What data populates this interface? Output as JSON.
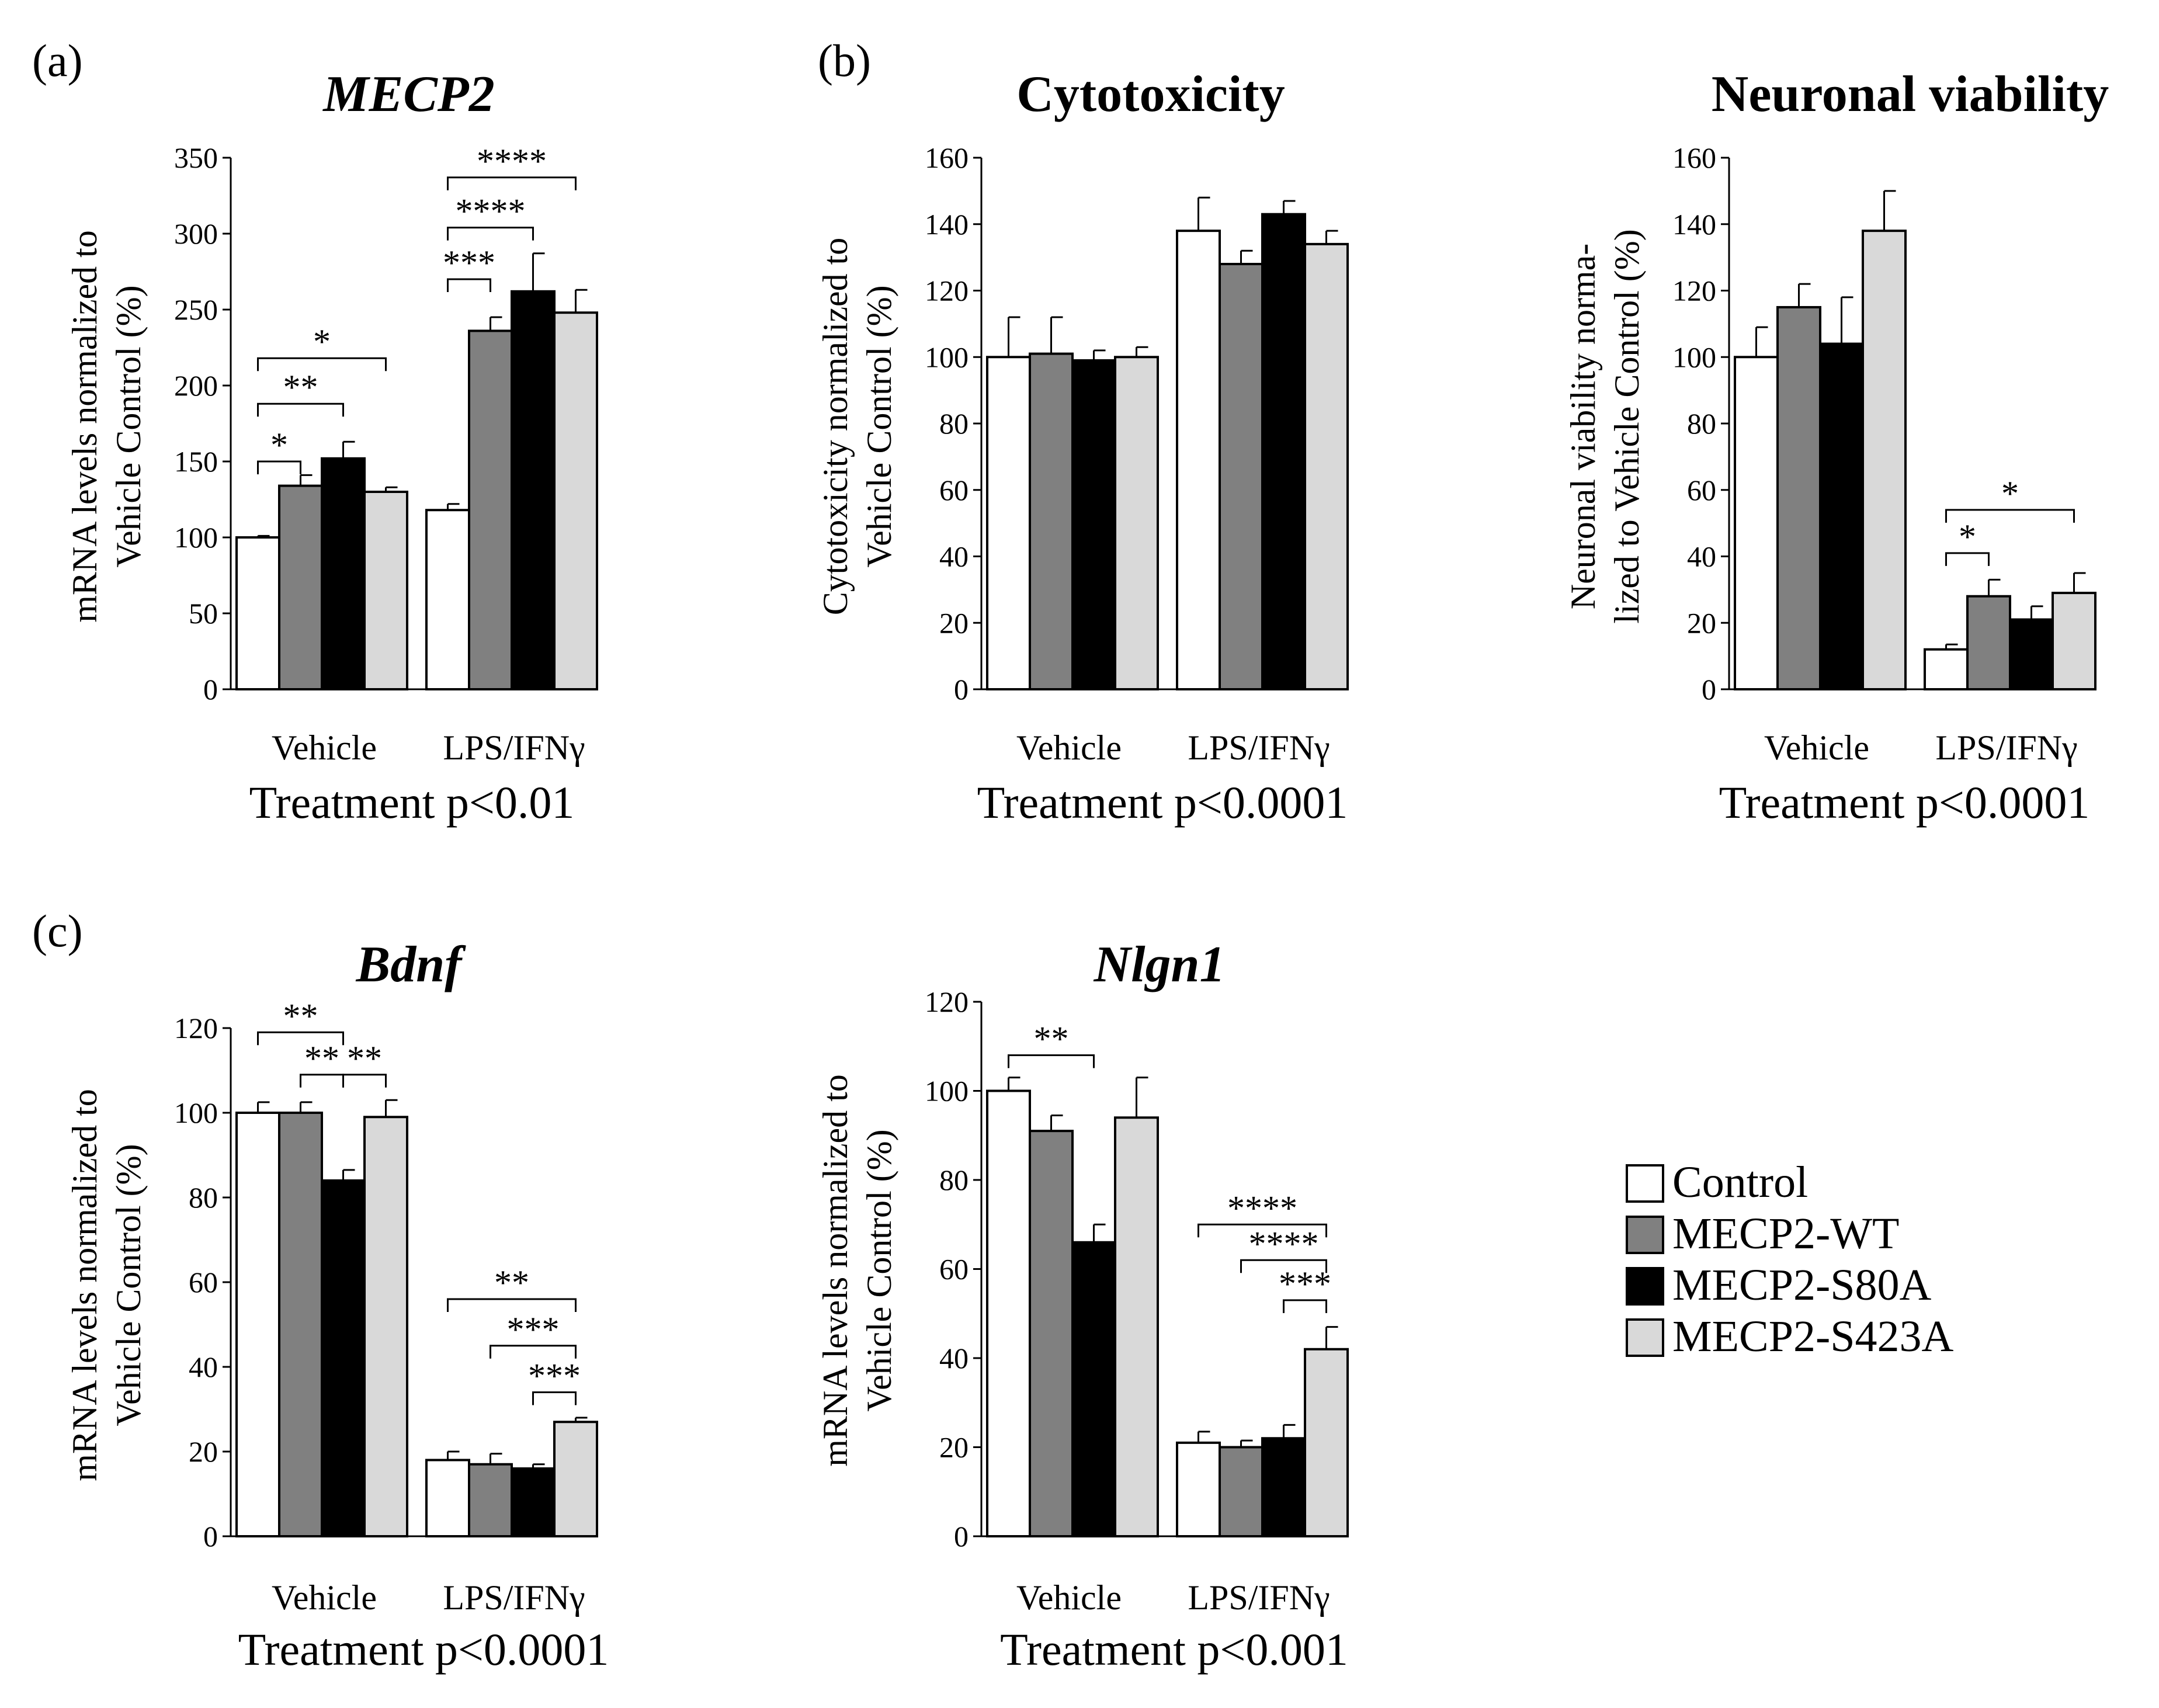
{
  "legend": [
    {
      "label": "Control",
      "color": "#ffffff"
    },
    {
      "label": "MECP2-WT",
      "color": "#808080"
    },
    {
      "label": "MECP2-S80A",
      "color": "#000000"
    },
    {
      "label": "MECP2-S423A",
      "color": "#d9d9d9"
    }
  ],
  "chart_data": [
    {
      "type": "bar",
      "panel": "(a)",
      "title": "MECP2",
      "title_italic": true,
      "ylabel": [
        "mRNA levels normalized to",
        "Vehicle Control (%)"
      ],
      "xlabel": "Treatment p<0.01",
      "categories": [
        "Vehicle",
        "LPS/IFNγ"
      ],
      "ylim": [
        0,
        350
      ],
      "yticks": [
        0,
        50,
        100,
        150,
        200,
        250,
        300,
        350
      ],
      "series": [
        {
          "name": "Control",
          "values": [
            100,
            118
          ],
          "errors": [
            1,
            4
          ]
        },
        {
          "name": "MECP2-WT",
          "values": [
            134,
            236
          ],
          "errors": [
            7,
            9
          ]
        },
        {
          "name": "MECP2-S80A",
          "values": [
            152,
            262
          ],
          "errors": [
            11,
            25
          ]
        },
        {
          "name": "MECP2-S423A",
          "values": [
            130,
            248
          ],
          "errors": [
            3,
            15
          ]
        }
      ],
      "significance": [
        {
          "group": 0,
          "from": 0,
          "to": 1,
          "label": "*",
          "y": 150
        },
        {
          "group": 0,
          "from": 0,
          "to": 2,
          "label": "**",
          "y": 188
        },
        {
          "group": 0,
          "from": 0,
          "to": 3,
          "label": "*",
          "y": 218
        },
        {
          "group": 1,
          "from": 0,
          "to": 1,
          "label": "***",
          "y": 270
        },
        {
          "group": 1,
          "from": 0,
          "to": 2,
          "label": "****",
          "y": 304
        },
        {
          "group": 1,
          "from": 0,
          "to": 3,
          "label": "****",
          "y": 337
        }
      ]
    },
    {
      "type": "bar",
      "panel": "(b)",
      "title": "Cytotoxicity",
      "title_italic": false,
      "ylabel": [
        "Cytotoxicity normalized to",
        "Vehicle Control (%)"
      ],
      "xlabel": "Treatment p<0.0001",
      "categories": [
        "Vehicle",
        "LPS/IFNγ"
      ],
      "ylim": [
        0,
        160
      ],
      "yticks": [
        0,
        20,
        40,
        60,
        80,
        100,
        120,
        140,
        160
      ],
      "series": [
        {
          "name": "Control",
          "values": [
            100,
            138
          ],
          "errors": [
            12,
            10
          ]
        },
        {
          "name": "MECP2-WT",
          "values": [
            101,
            128
          ],
          "errors": [
            11,
            4
          ]
        },
        {
          "name": "MECP2-S80A",
          "values": [
            99,
            143
          ],
          "errors": [
            3,
            4
          ]
        },
        {
          "name": "MECP2-S423A",
          "values": [
            100,
            134
          ],
          "errors": [
            3,
            4
          ]
        }
      ],
      "significance": []
    },
    {
      "type": "bar",
      "panel": "",
      "title": "Neuronal viability",
      "title_italic": false,
      "ylabel": [
        "Neuronal viability norma-",
        "lized to Vehicle Control (%)"
      ],
      "xlabel": "Treatment p<0.0001",
      "categories": [
        "Vehicle",
        "LPS/IFNγ"
      ],
      "ylim": [
        0,
        160
      ],
      "yticks": [
        0,
        20,
        40,
        60,
        80,
        100,
        120,
        140,
        160
      ],
      "series": [
        {
          "name": "Control",
          "values": [
            100,
            12
          ],
          "errors": [
            9,
            1.5
          ]
        },
        {
          "name": "MECP2-WT",
          "values": [
            115,
            28
          ],
          "errors": [
            7,
            5
          ]
        },
        {
          "name": "MECP2-S80A",
          "values": [
            104,
            21
          ],
          "errors": [
            14,
            4
          ]
        },
        {
          "name": "MECP2-S423A",
          "values": [
            138,
            29
          ],
          "errors": [
            12,
            6
          ]
        }
      ],
      "significance": [
        {
          "group": 1,
          "from": 0,
          "to": 1,
          "label": "*",
          "y": 41
        },
        {
          "group": 1,
          "from": 0,
          "to": 3,
          "label": "*",
          "y": 54
        }
      ]
    },
    {
      "type": "bar",
      "panel": "(c)",
      "title": "Bdnf",
      "title_italic": true,
      "ylabel": [
        "mRNA levels normalized to",
        "Vehicle Control (%)"
      ],
      "xlabel": "Treatment p<0.0001",
      "categories": [
        "Vehicle",
        "LPS/IFNγ"
      ],
      "ylim": [
        0,
        120
      ],
      "yticks": [
        0,
        20,
        40,
        60,
        80,
        100,
        120
      ],
      "series": [
        {
          "name": "Control",
          "values": [
            100,
            18
          ],
          "errors": [
            2.5,
            2
          ]
        },
        {
          "name": "MECP2-WT",
          "values": [
            100,
            17
          ],
          "errors": [
            2.5,
            2.5
          ]
        },
        {
          "name": "MECP2-S80A",
          "values": [
            84,
            16
          ],
          "errors": [
            2.5,
            1
          ]
        },
        {
          "name": "MECP2-S423A",
          "values": [
            99,
            27
          ],
          "errors": [
            4,
            1
          ]
        }
      ],
      "significance": [
        {
          "group": 0,
          "from": 0,
          "to": 2,
          "label": "**",
          "y": 119
        },
        {
          "group": 0,
          "from": 1,
          "to": 2,
          "label": "**",
          "y": 109
        },
        {
          "group": 0,
          "from": 2,
          "to": 3,
          "label": "**",
          "y": 109
        },
        {
          "group": 1,
          "from": 0,
          "to": 3,
          "label": "**",
          "y": 56
        },
        {
          "group": 1,
          "from": 1,
          "to": 3,
          "label": "***",
          "y": 45
        },
        {
          "group": 1,
          "from": 2,
          "to": 3,
          "label": "***",
          "y": 34
        }
      ]
    },
    {
      "type": "bar",
      "panel": "",
      "title": "Nlgn1",
      "title_italic": true,
      "ylabel": [
        "mRNA levels normalized to",
        "Vehicle Control (%)"
      ],
      "xlabel": "Treatment p<0.001",
      "categories": [
        "Vehicle",
        "LPS/IFNγ"
      ],
      "ylim": [
        0,
        120
      ],
      "yticks": [
        0,
        20,
        40,
        60,
        80,
        100,
        120
      ],
      "series": [
        {
          "name": "Control",
          "values": [
            100,
            21
          ],
          "errors": [
            3,
            2.5
          ]
        },
        {
          "name": "MECP2-WT",
          "values": [
            91,
            20
          ],
          "errors": [
            3.5,
            1.5
          ]
        },
        {
          "name": "MECP2-S80A",
          "values": [
            66,
            22
          ],
          "errors": [
            4,
            3
          ]
        },
        {
          "name": "MECP2-S423A",
          "values": [
            94,
            42
          ],
          "errors": [
            9,
            5
          ]
        }
      ],
      "significance": [
        {
          "group": 0,
          "from": 0,
          "to": 2,
          "label": "**",
          "y": 108
        },
        {
          "group": 1,
          "from": 0,
          "to": 3,
          "label": "****",
          "y": 70
        },
        {
          "group": 1,
          "from": 1,
          "to": 3,
          "label": "****",
          "y": 62
        },
        {
          "group": 1,
          "from": 2,
          "to": 3,
          "label": "***",
          "y": 53
        }
      ]
    }
  ]
}
